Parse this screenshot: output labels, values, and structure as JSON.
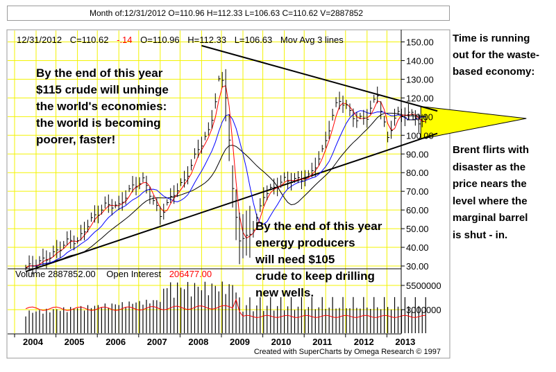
{
  "info_bar": "Month of:12/31/2012 O=110.96 H=112.33 L=106.63 C=110.62 V=2887852",
  "header": {
    "date": "12/31/2012",
    "close": "C=110.62",
    "change": "-.14",
    "open": "O=110.96",
    "high": "H=112.33",
    "low": "L=106.63",
    "study": "Mov Avg 3 lines"
  },
  "volume_header": {
    "volume": "Volume  2887852.00",
    "oi_label": "Open Interest",
    "oi_value": "206477.00"
  },
  "annotations": {
    "crude": "By the end of this year\n$115 crude will unhinge\nthe world's economies:\nthe world is becoming\npoorer, faster!",
    "energy": "By the end of this year\nenergy producers\nwill need $105\ncrude to keep drilling\nnew wells.",
    "time": "Time is running\nout for the waste-\nbased economy:",
    "brent": "Brent flirts with\ndisaster as the\nprice nears the\nlevel where the\nmarginal barrel\nis shut - in."
  },
  "footer": "Created with SuperCharts by Omega Research © 1997",
  "colors": {
    "grid": "#f3f300",
    "triangle": "#ffff00",
    "ma_fast": "#ff0000",
    "ma_mid": "#0000ff",
    "ma_slow": "#000000",
    "open_interest": "#ff0000",
    "volume": "#000000",
    "change": "#ff0000"
  },
  "chart_data": {
    "type": "bar",
    "subtype": "monthly OHLC price chart with volume and open interest",
    "x_labels": [
      "2004",
      "2005",
      "2006",
      "2007",
      "2008",
      "2009",
      "2010",
      "2011",
      "2012",
      "2013"
    ],
    "price_axis": {
      "ticks": [
        "150.00",
        "140.00",
        "130.00",
        "120.00",
        "110.00",
        "100.00",
        "90.00",
        "80.00",
        "70.00",
        "60.00",
        "50.00",
        "40.00",
        "30.00"
      ],
      "ylim": [
        25,
        153
      ]
    },
    "volume_axis": {
      "ticks": [
        "5500000",
        "3000000"
      ],
      "ylim": [
        1000000,
        6300000
      ]
    },
    "last_bar": {
      "date": "12/31/2012",
      "open": 110.96,
      "high": 112.33,
      "low": 106.63,
      "close": 110.62,
      "change": -0.14,
      "volume": 2887852,
      "open_interest": 206477
    },
    "price_anchor_points": [
      {
        "t": 2003.75,
        "p": 29
      },
      {
        "t": 2004.0,
        "p": 31
      },
      {
        "t": 2004.4,
        "p": 36
      },
      {
        "t": 2004.8,
        "p": 44
      },
      {
        "t": 2005.0,
        "p": 43
      },
      {
        "t": 2005.3,
        "p": 54
      },
      {
        "t": 2005.7,
        "p": 63
      },
      {
        "t": 2006.0,
        "p": 62
      },
      {
        "t": 2006.3,
        "p": 72
      },
      {
        "t": 2006.6,
        "p": 76
      },
      {
        "t": 2007.0,
        "p": 57
      },
      {
        "t": 2007.3,
        "p": 68
      },
      {
        "t": 2007.6,
        "p": 76
      },
      {
        "t": 2007.9,
        "p": 92
      },
      {
        "t": 2008.2,
        "p": 103
      },
      {
        "t": 2008.45,
        "p": 133
      },
      {
        "t": 2008.6,
        "p": 120
      },
      {
        "t": 2008.75,
        "p": 70
      },
      {
        "t": 2008.9,
        "p": 45
      },
      {
        "t": 2009.05,
        "p": 44
      },
      {
        "t": 2009.3,
        "p": 52
      },
      {
        "t": 2009.5,
        "p": 68
      },
      {
        "t": 2009.75,
        "p": 72
      },
      {
        "t": 2010.0,
        "p": 76
      },
      {
        "t": 2010.3,
        "p": 76
      },
      {
        "t": 2010.6,
        "p": 78
      },
      {
        "t": 2010.9,
        "p": 90
      },
      {
        "t": 2011.1,
        "p": 105
      },
      {
        "t": 2011.3,
        "p": 120
      },
      {
        "t": 2011.5,
        "p": 115
      },
      {
        "t": 2011.75,
        "p": 108
      },
      {
        "t": 2012.0,
        "p": 110
      },
      {
        "t": 2012.25,
        "p": 122
      },
      {
        "t": 2012.5,
        "p": 98
      },
      {
        "t": 2012.7,
        "p": 112
      },
      {
        "t": 2012.85,
        "p": 110
      },
      {
        "t": 2013.0,
        "p": 112
      },
      {
        "t": 2013.15,
        "p": 110
      },
      {
        "t": 2013.3,
        "p": 106
      },
      {
        "t": 2013.45,
        "p": 108
      }
    ],
    "moving_averages": [
      "fast",
      "mid",
      "slow"
    ],
    "trendlines": [
      {
        "name": "resistance",
        "from": {
          "t": 2008.0,
          "p": 148
        },
        "to": {
          "t": 2013.7,
          "p": 113
        }
      },
      {
        "name": "support",
        "from": {
          "t": 2003.75,
          "p": 27
        },
        "to": {
          "t": 2013.7,
          "p": 101
        }
      }
    ],
    "apex": {
      "t": 2015.85,
      "p": 109
    }
  }
}
